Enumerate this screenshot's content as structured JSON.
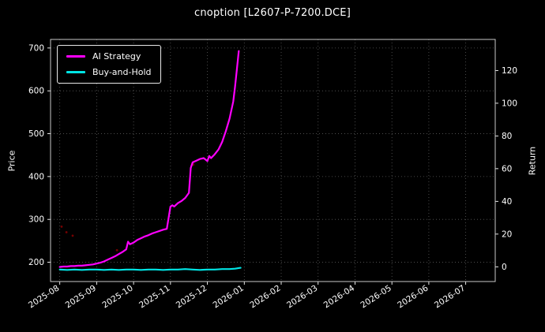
{
  "chart_data": {
    "type": "line",
    "title": "cnoption [L2607-P-7200.DCE]",
    "ylabel_left": "Price",
    "ylabel_right": "Return",
    "x_tick_labels": [
      "2025-08",
      "2025-09",
      "2025-10",
      "2025-11",
      "2025-12",
      "2026-01",
      "2026-02",
      "2026-03",
      "2026-04",
      "2026-05",
      "2026-06",
      "2026-07"
    ],
    "xlim": [
      -0.25,
      11.8
    ],
    "ylim_left": [
      155,
      720
    ],
    "yticks_left": [
      200,
      300,
      400,
      500,
      600,
      700
    ],
    "ylim_right": [
      -9,
      139
    ],
    "yticks_right": [
      0,
      20,
      40,
      60,
      80,
      100,
      120
    ],
    "grid": true,
    "background": "#000000",
    "text_color": "#ffffff",
    "grid_color": "#5a5a5a",
    "spine_color": "#c8c8c8",
    "legend_labels": [
      "AI Strategy",
      "Buy-and-Hold"
    ],
    "series": [
      {
        "name": "AI Strategy",
        "color": "#ff00ff",
        "width": 2.2,
        "x": [
          0,
          0.1,
          0.2,
          0.3,
          0.4,
          0.5,
          0.6,
          0.7,
          0.8,
          0.9,
          1,
          1.1,
          1.2,
          1.3,
          1.4,
          1.5,
          1.6,
          1.7,
          1.8,
          1.85,
          1.9,
          2,
          2.1,
          2.2,
          2.3,
          2.4,
          2.5,
          2.6,
          2.7,
          2.8,
          2.9,
          3,
          3.05,
          3.1,
          3.2,
          3.3,
          3.4,
          3.5,
          3.55,
          3.6,
          3.7,
          3.8,
          3.9,
          4,
          4.05,
          4.1,
          4.2,
          4.3,
          4.4,
          4.5,
          4.6,
          4.7,
          4.75,
          4.8,
          4.85
        ],
        "y": [
          189,
          190,
          190,
          191,
          191,
          192,
          192,
          193,
          194,
          195,
          197,
          199,
          202,
          206,
          210,
          214,
          219,
          224,
          230,
          248,
          242,
          246,
          252,
          256,
          260,
          263,
          267,
          270,
          273,
          276,
          278,
          330,
          333,
          330,
          338,
          343,
          350,
          362,
          420,
          433,
          437,
          441,
          443,
          436,
          448,
          443,
          452,
          463,
          481,
          506,
          535,
          575,
          610,
          650,
          693
        ]
      },
      {
        "name": "Buy-and-Hold",
        "color": "#00e5e5",
        "width": 2.2,
        "x": [
          0,
          0.2,
          0.4,
          0.6,
          0.8,
          1,
          1.2,
          1.4,
          1.6,
          1.8,
          2,
          2.2,
          2.4,
          2.6,
          2.8,
          3,
          3.2,
          3.4,
          3.6,
          3.8,
          4,
          4.2,
          4.4,
          4.6,
          4.75,
          4.9
        ],
        "y": [
          183,
          182,
          183,
          182,
          183,
          183,
          182,
          183,
          182,
          183,
          183,
          182,
          183,
          183,
          182,
          183,
          183,
          184,
          183,
          182,
          183,
          183,
          184,
          184,
          185,
          187
        ]
      }
    ],
    "signal_dots": {
      "color": "#8b0000",
      "points": [
        [
          0.05,
          283
        ],
        [
          0.18,
          270
        ],
        [
          0.35,
          262
        ],
        [
          1.55,
          228
        ],
        [
          3.62,
          428
        ]
      ]
    }
  }
}
